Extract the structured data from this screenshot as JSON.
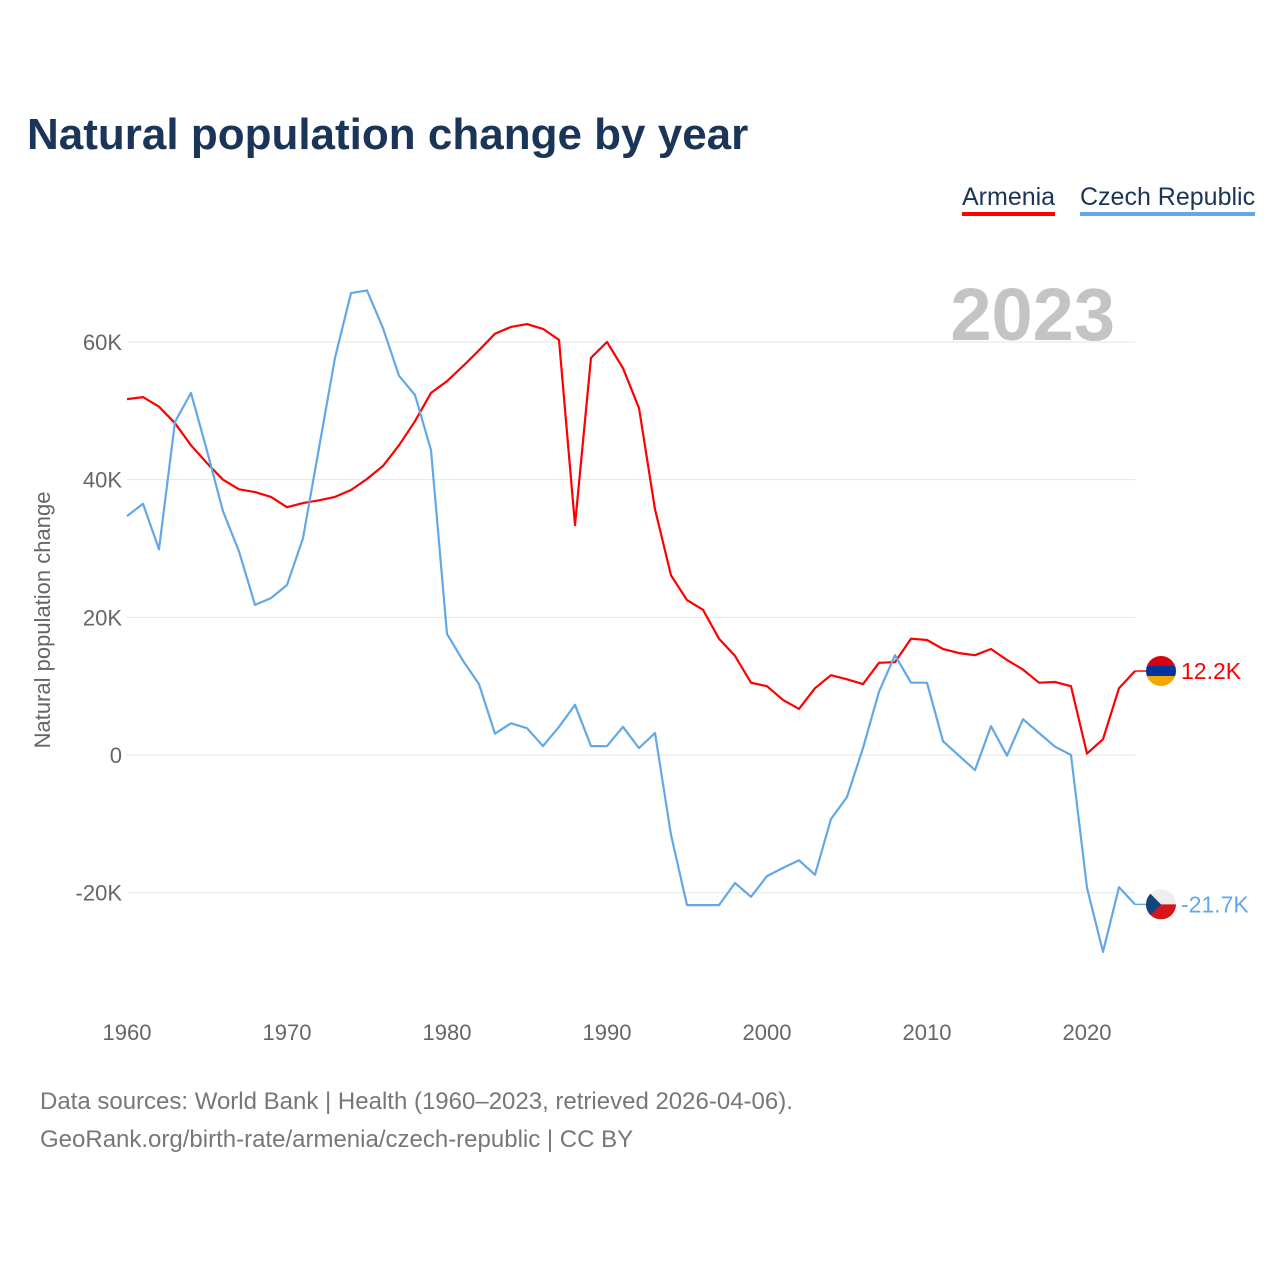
{
  "chart_data": {
    "type": "line",
    "title": "Natural population change by year",
    "xlabel": "",
    "ylabel": "Natural population change",
    "year_label": "2023",
    "xlim": [
      1960,
      2023
    ],
    "ylim": [
      -30000,
      70000
    ],
    "x_ticks": [
      1960,
      1970,
      1980,
      1990,
      2000,
      2010,
      2020
    ],
    "y_ticks": [
      {
        "value": -20000,
        "label": "-20K"
      },
      {
        "value": 0,
        "label": "0"
      },
      {
        "value": 20000,
        "label": "20K"
      },
      {
        "value": 40000,
        "label": "40K"
      },
      {
        "value": 60000,
        "label": "60K"
      }
    ],
    "grid": true,
    "legend_placement": "top-right",
    "x": [
      1960,
      1961,
      1962,
      1963,
      1964,
      1965,
      1966,
      1967,
      1968,
      1969,
      1970,
      1971,
      1972,
      1973,
      1974,
      1975,
      1976,
      1977,
      1978,
      1979,
      1980,
      1981,
      1982,
      1983,
      1984,
      1985,
      1986,
      1987,
      1988,
      1989,
      1990,
      1991,
      1992,
      1993,
      1994,
      1995,
      1996,
      1997,
      1998,
      1999,
      2000,
      2001,
      2002,
      2003,
      2004,
      2005,
      2006,
      2007,
      2008,
      2009,
      2010,
      2011,
      2012,
      2013,
      2014,
      2015,
      2016,
      2017,
      2018,
      2019,
      2020,
      2021,
      2022,
      2023
    ],
    "series": [
      {
        "name": "Armenia",
        "color": "#ff0000",
        "end_label": "12.2K",
        "flag": "armenia-flag",
        "values": [
          51700,
          52000,
          50600,
          48200,
          45000,
          42400,
          40000,
          38600,
          38200,
          37500,
          36000,
          36600,
          37000,
          37500,
          38500,
          40100,
          42000,
          45000,
          48500,
          52600,
          54300,
          56500,
          58800,
          61200,
          62200,
          62600,
          61900,
          60300,
          33400,
          57700,
          60000,
          56200,
          50400,
          35700,
          26100,
          22500,
          21100,
          16900,
          14400,
          10500,
          10000,
          8000,
          6700,
          9700,
          11600,
          11000,
          10300,
          13400,
          13500,
          16900,
          16700,
          15400,
          14800,
          14500,
          15400,
          13800,
          12400,
          10500,
          10600,
          10000,
          200,
          2300,
          9700,
          12200
        ]
      },
      {
        "name": "Czech Republic",
        "color": "#62a8e8",
        "end_label": "-21.7K",
        "flag": "czech-republic-flag",
        "values": [
          34700,
          36500,
          29900,
          48400,
          52600,
          44200,
          35400,
          29600,
          21800,
          22800,
          24700,
          31500,
          44600,
          57700,
          67100,
          67500,
          62000,
          55100,
          52300,
          44300,
          17600,
          13700,
          10300,
          3100,
          4600,
          3900,
          1300,
          4100,
          7300,
          1300,
          1300,
          4100,
          1000,
          3200,
          -11600,
          -21800,
          -21800,
          -21800,
          -18600,
          -20600,
          -17600,
          -16400,
          -15300,
          -17400,
          -9300,
          -6100,
          1000,
          9200,
          14500,
          10500,
          10500,
          2000,
          -100,
          -2200,
          4200,
          -100,
          5200,
          3200,
          1200,
          0,
          -19300,
          -28600,
          -19200,
          -21700
        ]
      }
    ]
  },
  "footer": {
    "line1": "Data sources: World Bank | Health (1960–2023, retrieved 2026-04-06).",
    "line2": "GeoRank.org/birth-rate/armenia/czech-republic | CC BY"
  }
}
